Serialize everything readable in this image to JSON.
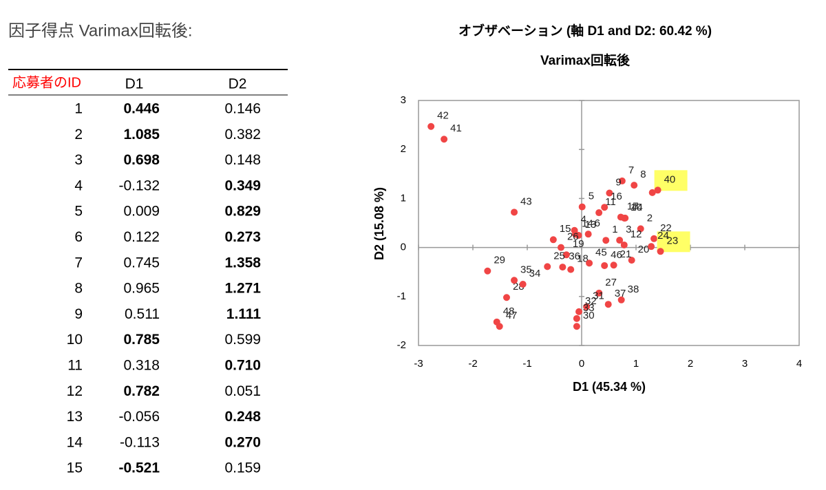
{
  "heading": "因子得点 Varimax回転後:",
  "table": {
    "columns": [
      "応募者のID",
      "D1",
      "D2"
    ],
    "rows": [
      {
        "id": "1",
        "d1": "0.446",
        "d2": "0.146",
        "bold_col": 1
      },
      {
        "id": "2",
        "d1": "1.085",
        "d2": "0.382",
        "bold_col": 1
      },
      {
        "id": "3",
        "d1": "0.698",
        "d2": "0.148",
        "bold_col": 1
      },
      {
        "id": "4",
        "d1": "-0.132",
        "d2": "0.349",
        "bold_col": 2
      },
      {
        "id": "5",
        "d1": "0.009",
        "d2": "0.829",
        "bold_col": 2
      },
      {
        "id": "6",
        "d1": "0.122",
        "d2": "0.273",
        "bold_col": 2
      },
      {
        "id": "7",
        "d1": "0.745",
        "d2": "1.358",
        "bold_col": 2
      },
      {
        "id": "8",
        "d1": "0.965",
        "d2": "1.271",
        "bold_col": 2
      },
      {
        "id": "9",
        "d1": "0.511",
        "d2": "1.111",
        "bold_col": 2
      },
      {
        "id": "10",
        "d1": "0.785",
        "d2": "0.599",
        "bold_col": 1
      },
      {
        "id": "11",
        "d1": "0.318",
        "d2": "0.710",
        "bold_col": 2
      },
      {
        "id": "12",
        "d1": "0.782",
        "d2": "0.051",
        "bold_col": 1
      },
      {
        "id": "13",
        "d1": "-0.056",
        "d2": "0.248",
        "bold_col": 2
      },
      {
        "id": "14",
        "d1": "-0.113",
        "d2": "0.270",
        "bold_col": 2
      },
      {
        "id": "15",
        "d1": "-0.521",
        "d2": "0.159",
        "bold_col": 1
      }
    ],
    "header_color": "#ff0000"
  },
  "chart_data": {
    "type": "scatter",
    "title": "オブザベーション (軸 D1 and D2: 60.42 %)",
    "subtitle": "Varimax回転後",
    "xlabel": "D1 (45.34 %)",
    "ylabel": "D2 (15.08 %)",
    "labels": [
      "1",
      "2",
      "3",
      "4",
      "5",
      "6",
      "7",
      "8",
      "9",
      "10",
      "11",
      "12",
      "13",
      "14",
      "15",
      "16",
      "17",
      "18",
      "19",
      "20",
      "21",
      "22",
      "23",
      "24",
      "25",
      "26",
      "27",
      "28",
      "29",
      "30",
      "31",
      "32",
      "33",
      "34",
      "35",
      "36",
      "37",
      "38",
      "39",
      "40",
      "41",
      "42",
      "43",
      "44",
      "45",
      "46",
      "47",
      "48"
    ],
    "x": [
      0.446,
      1.085,
      0.698,
      -0.132,
      0.009,
      0.122,
      0.745,
      0.965,
      0.511,
      0.785,
      0.318,
      0.782,
      -0.056,
      -0.113,
      -0.521,
      0.42,
      0.72,
      -0.2,
      -0.28,
      0.92,
      0.59,
      1.33,
      1.45,
      1.28,
      -0.63,
      -0.38,
      0.32,
      -1.38,
      -1.73,
      -0.09,
      0.09,
      -0.05,
      -0.09,
      -1.08,
      -1.24,
      -0.35,
      0.49,
      0.73,
      1.3,
      1.4,
      -2.53,
      -2.77,
      -1.24,
      0.8,
      0.14,
      0.42,
      -1.51,
      -1.56
    ],
    "values": [
      0.146,
      0.382,
      0.148,
      0.349,
      0.829,
      0.273,
      1.358,
      1.271,
      1.111,
      0.599,
      0.71,
      0.051,
      0.248,
      0.27,
      0.159,
      0.82,
      0.62,
      -0.45,
      -0.15,
      -0.26,
      -0.36,
      0.18,
      -0.08,
      0.02,
      -0.39,
      0.0,
      -0.93,
      -1.02,
      -0.48,
      -1.61,
      -1.21,
      -1.31,
      -1.45,
      -0.75,
      -0.67,
      -0.4,
      -1.16,
      -1.07,
      1.12,
      1.17,
      2.21,
      2.47,
      0.72,
      0.6,
      -0.32,
      -0.37,
      -1.61,
      -1.52
    ],
    "color": "#f04545",
    "highlighted": [
      40,
      23
    ],
    "highlight_color": "#ffff66",
    "xlim": [
      -3,
      4
    ],
    "ylim": [
      -2,
      3
    ],
    "xticks": [
      -3,
      -2,
      -1,
      0,
      1,
      2,
      3,
      4
    ],
    "yticks": [
      -2,
      -1,
      0,
      1,
      2,
      3
    ]
  }
}
